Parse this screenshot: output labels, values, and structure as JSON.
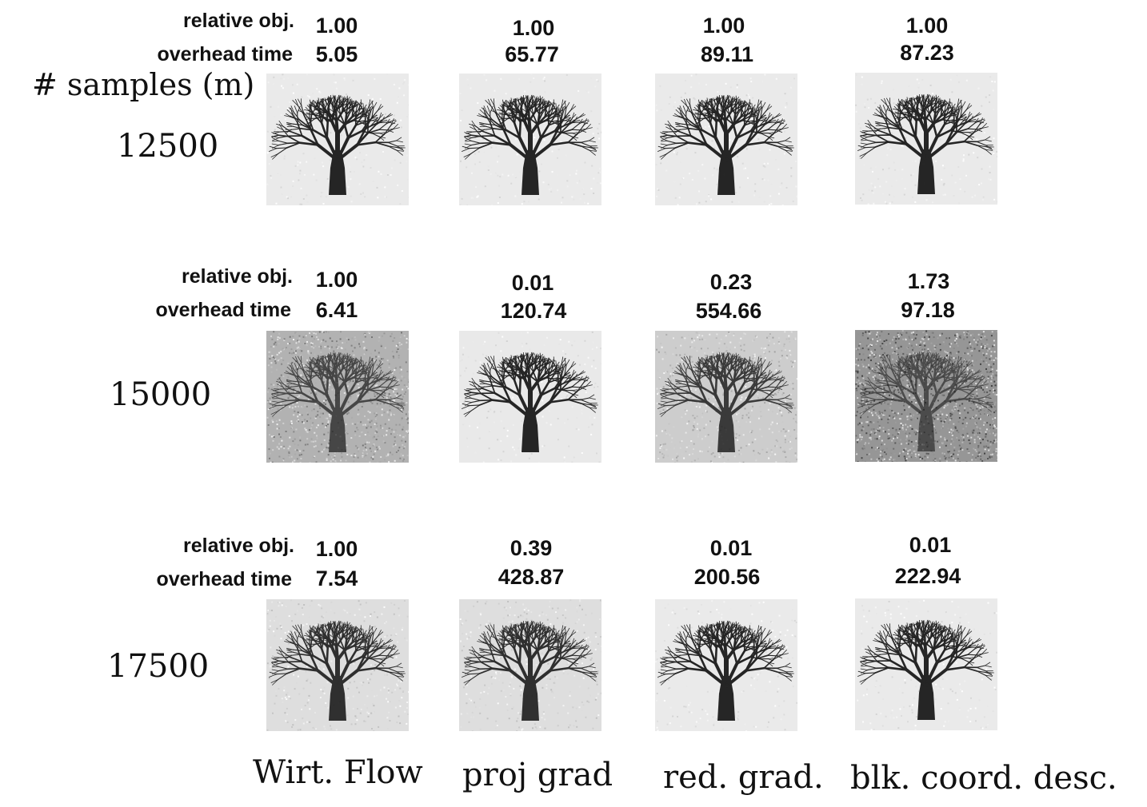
{
  "samples_header": "# samples (m)",
  "row_label_obj": "relative obj.",
  "row_label_time": "overhead time",
  "methods": [
    "Wirt. Flow",
    "proj grad",
    "red. grad.",
    "blk. coord. desc."
  ],
  "rows": [
    {
      "m": "12500",
      "cells": [
        {
          "obj": "1.00",
          "time": "5.05",
          "noise": 0.04
        },
        {
          "obj": "1.00",
          "time": "65.77",
          "noise": 0.04
        },
        {
          "obj": "1.00",
          "time": "89.11",
          "noise": 0.04
        },
        {
          "obj": "1.00",
          "time": "87.23",
          "noise": 0.04
        }
      ]
    },
    {
      "m": "15000",
      "cells": [
        {
          "obj": "1.00",
          "time": "6.41",
          "noise": 0.55
        },
        {
          "obj": "0.01",
          "time": "120.74",
          "noise": 0.05
        },
        {
          "obj": "0.23",
          "time": "554.66",
          "noise": 0.3
        },
        {
          "obj": "1.73",
          "time": "97.18",
          "noise": 0.8
        }
      ]
    },
    {
      "m": "17500",
      "cells": [
        {
          "obj": "1.00",
          "time": "7.54",
          "noise": 0.15
        },
        {
          "obj": "0.39",
          "time": "428.87",
          "noise": 0.15
        },
        {
          "obj": "0.01",
          "time": "200.56",
          "noise": 0.04
        },
        {
          "obj": "0.01",
          "time": "222.94",
          "noise": 0.04
        }
      ]
    }
  ]
}
